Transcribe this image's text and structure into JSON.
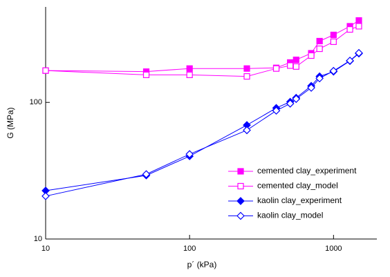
{
  "chart_data": {
    "type": "line",
    "xlabel": "p´ (kPa)",
    "ylabel": "G (MPa)",
    "xscale": "log",
    "yscale": "log",
    "xlim": [
      10,
      2000
    ],
    "ylim": [
      10,
      500
    ],
    "xticks": [
      10,
      100,
      1000
    ],
    "yticks": [
      10,
      100
    ],
    "legend": "lower right",
    "series": [
      {
        "name": "cemented clay_experiment",
        "color": "#ff00ff",
        "marker": "square",
        "filled": true,
        "x": [
          10,
          50,
          100,
          250,
          400,
          500,
          550,
          700,
          800,
          1000,
          1300,
          1500
        ],
        "values": [
          171,
          168,
          177,
          177,
          179,
          196,
          205,
          229,
          281,
          312,
          361,
          398
        ]
      },
      {
        "name": "cemented clay_model",
        "color": "#ff00ff",
        "marker": "square",
        "filled": false,
        "x": [
          10,
          50,
          100,
          250,
          400,
          500,
          550,
          700,
          800,
          1000,
          1300,
          1500
        ],
        "values": [
          171,
          159,
          159,
          155,
          177,
          186,
          183,
          220,
          247,
          278,
          342,
          361
        ]
      },
      {
        "name": "kaolin clay_experiment",
        "color": "#0000ff",
        "marker": "diamond",
        "filled": true,
        "x": [
          10,
          50,
          100,
          250,
          400,
          500,
          550,
          700,
          800,
          1000,
          1300,
          1500
        ],
        "values": [
          22.6,
          29.2,
          40.4,
          68.2,
          91,
          101,
          108,
          132,
          155,
          168,
          201,
          228
        ]
      },
      {
        "name": "kaolin clay_model",
        "color": "#0000ff",
        "marker": "diamond",
        "filled": false,
        "x": [
          10,
          50,
          100,
          250,
          400,
          500,
          550,
          700,
          800,
          1000,
          1300,
          1500
        ],
        "values": [
          20.6,
          29.8,
          41.8,
          62.6,
          87,
          98,
          106,
          128,
          150,
          170,
          202,
          230
        ]
      }
    ]
  }
}
